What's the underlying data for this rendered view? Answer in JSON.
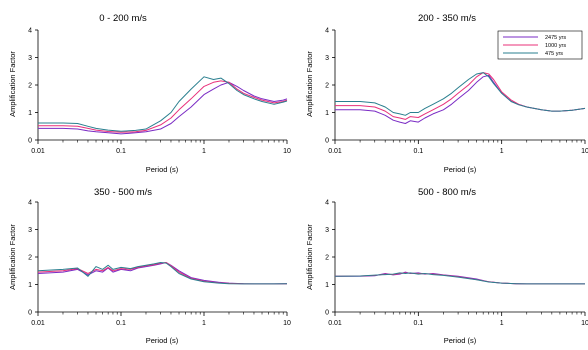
{
  "colors": {
    "axis": "#000000",
    "legend_border": "#000000"
  },
  "chart_data": [
    {
      "type": "line",
      "title": "0 - 200 m/s",
      "xlabel": "Period (s)",
      "ylabel": "Amplification Factor",
      "xscale": "log",
      "xlim": [
        0.01,
        10
      ],
      "ylim": [
        0,
        4
      ],
      "xticks": [
        "0.01",
        "0.1",
        "1",
        "10"
      ],
      "yticks": [
        "0",
        "1",
        "2",
        "3",
        "4"
      ],
      "grid": false,
      "legend": false,
      "series": [
        {
          "name": "2475 yrs",
          "color": "#7a2bc4",
          "x": [
            0.01,
            0.02,
            0.03,
            0.04,
            0.05,
            0.07,
            0.1,
            0.15,
            0.2,
            0.3,
            0.4,
            0.5,
            0.7,
            1.0,
            1.3,
            1.6,
            2.0,
            2.5,
            3.0,
            4.0,
            5.0,
            7.0,
            9.0,
            10.0
          ],
          "y": [
            0.42,
            0.42,
            0.4,
            0.33,
            0.3,
            0.26,
            0.22,
            0.26,
            0.3,
            0.4,
            0.6,
            0.85,
            1.2,
            1.65,
            1.85,
            2.0,
            2.1,
            1.95,
            1.8,
            1.6,
            1.5,
            1.4,
            1.45,
            1.5
          ]
        },
        {
          "name": "1000 yrs",
          "color": "#e8307a",
          "x": [
            0.01,
            0.02,
            0.03,
            0.04,
            0.05,
            0.07,
            0.1,
            0.15,
            0.2,
            0.3,
            0.4,
            0.5,
            0.7,
            1.0,
            1.3,
            1.6,
            2.0,
            2.5,
            3.0,
            4.0,
            5.0,
            7.0,
            9.0,
            10.0
          ],
          "y": [
            0.52,
            0.52,
            0.5,
            0.42,
            0.36,
            0.31,
            0.28,
            0.3,
            0.35,
            0.55,
            0.8,
            1.1,
            1.5,
            1.95,
            2.1,
            2.15,
            2.1,
            1.85,
            1.7,
            1.55,
            1.45,
            1.35,
            1.4,
            1.45
          ]
        },
        {
          "name": "475 yrs",
          "color": "#2a7f8f",
          "x": [
            0.01,
            0.02,
            0.03,
            0.04,
            0.05,
            0.07,
            0.1,
            0.15,
            0.2,
            0.3,
            0.4,
            0.5,
            0.7,
            1.0,
            1.3,
            1.6,
            2.0,
            2.5,
            3.0,
            4.0,
            5.0,
            7.0,
            9.0,
            10.0
          ],
          "y": [
            0.62,
            0.62,
            0.6,
            0.5,
            0.42,
            0.36,
            0.32,
            0.35,
            0.4,
            0.7,
            1.0,
            1.4,
            1.85,
            2.3,
            2.2,
            2.25,
            2.05,
            1.8,
            1.65,
            1.5,
            1.4,
            1.3,
            1.38,
            1.42
          ]
        }
      ]
    },
    {
      "type": "line",
      "title": "200 - 350 m/s",
      "xlabel": "Period (s)",
      "ylabel": "Amplification Factor",
      "xscale": "log",
      "xlim": [
        0.01,
        10
      ],
      "ylim": [
        0,
        4
      ],
      "xticks": [
        "0.01",
        "0.1",
        "1",
        "10"
      ],
      "yticks": [
        "0",
        "1",
        "2",
        "3",
        "4"
      ],
      "grid": false,
      "legend": true,
      "legend_position": "top-right",
      "series": [
        {
          "name": "2475 yrs",
          "color": "#7a2bc4",
          "x": [
            0.01,
            0.02,
            0.03,
            0.04,
            0.05,
            0.06,
            0.07,
            0.08,
            0.1,
            0.12,
            0.15,
            0.2,
            0.25,
            0.3,
            0.4,
            0.5,
            0.6,
            0.7,
            0.8,
            1.0,
            1.3,
            1.6,
            2.0,
            3.0,
            4.0,
            5.0,
            7.0,
            10.0
          ],
          "y": [
            1.1,
            1.1,
            1.05,
            0.9,
            0.72,
            0.65,
            0.6,
            0.7,
            0.65,
            0.8,
            0.95,
            1.1,
            1.3,
            1.5,
            1.8,
            2.1,
            2.3,
            2.35,
            2.1,
            1.7,
            1.4,
            1.3,
            1.2,
            1.1,
            1.05,
            1.05,
            1.08,
            1.15
          ]
        },
        {
          "name": "1000 yrs",
          "color": "#e8307a",
          "x": [
            0.01,
            0.02,
            0.03,
            0.04,
            0.05,
            0.06,
            0.07,
            0.08,
            0.1,
            0.12,
            0.15,
            0.2,
            0.25,
            0.3,
            0.4,
            0.5,
            0.6,
            0.7,
            0.8,
            1.0,
            1.3,
            1.6,
            2.0,
            3.0,
            4.0,
            5.0,
            7.0,
            10.0
          ],
          "y": [
            1.25,
            1.25,
            1.2,
            1.05,
            0.85,
            0.8,
            0.75,
            0.85,
            0.82,
            0.95,
            1.1,
            1.3,
            1.5,
            1.7,
            2.0,
            2.3,
            2.45,
            2.4,
            2.2,
            1.75,
            1.45,
            1.3,
            1.2,
            1.1,
            1.05,
            1.05,
            1.08,
            1.15
          ]
        },
        {
          "name": "475 yrs",
          "color": "#2a7f8f",
          "x": [
            0.01,
            0.02,
            0.03,
            0.04,
            0.05,
            0.06,
            0.07,
            0.08,
            0.1,
            0.12,
            0.15,
            0.2,
            0.25,
            0.3,
            0.4,
            0.5,
            0.6,
            0.7,
            0.8,
            1.0,
            1.3,
            1.6,
            2.0,
            3.0,
            4.0,
            5.0,
            7.0,
            10.0
          ],
          "y": [
            1.4,
            1.4,
            1.35,
            1.2,
            1.0,
            0.95,
            0.9,
            1.0,
            1.0,
            1.15,
            1.3,
            1.5,
            1.7,
            1.9,
            2.2,
            2.4,
            2.45,
            2.3,
            2.05,
            1.7,
            1.4,
            1.28,
            1.2,
            1.1,
            1.05,
            1.05,
            1.08,
            1.15
          ]
        }
      ]
    },
    {
      "type": "line",
      "title": "350 - 500 m/s",
      "xlabel": "Period (s)",
      "ylabel": "Amplification Factor",
      "xscale": "log",
      "xlim": [
        0.01,
        10
      ],
      "ylim": [
        0,
        4
      ],
      "xticks": [
        "0.01",
        "0.1",
        "1",
        "10"
      ],
      "yticks": [
        "0",
        "1",
        "2",
        "3",
        "4"
      ],
      "grid": false,
      "legend": false,
      "series": [
        {
          "name": "2475 yrs",
          "color": "#7a2bc4",
          "x": [
            0.01,
            0.02,
            0.03,
            0.04,
            0.05,
            0.06,
            0.07,
            0.08,
            0.1,
            0.13,
            0.16,
            0.2,
            0.25,
            0.3,
            0.35,
            0.4,
            0.5,
            0.7,
            1.0,
            1.5,
            2.0,
            3.0,
            5.0,
            7.0,
            10.0
          ],
          "y": [
            1.4,
            1.45,
            1.55,
            1.35,
            1.5,
            1.45,
            1.6,
            1.45,
            1.55,
            1.5,
            1.6,
            1.65,
            1.7,
            1.75,
            1.8,
            1.7,
            1.5,
            1.25,
            1.15,
            1.08,
            1.05,
            1.03,
            1.02,
            1.02,
            1.03
          ]
        },
        {
          "name": "1000 yrs",
          "color": "#e8307a",
          "x": [
            0.01,
            0.02,
            0.03,
            0.04,
            0.05,
            0.06,
            0.07,
            0.08,
            0.1,
            0.13,
            0.16,
            0.2,
            0.25,
            0.3,
            0.35,
            0.4,
            0.5,
            0.7,
            1.0,
            1.5,
            2.0,
            3.0,
            5.0,
            7.0,
            10.0
          ],
          "y": [
            1.45,
            1.5,
            1.58,
            1.4,
            1.55,
            1.5,
            1.62,
            1.5,
            1.58,
            1.55,
            1.62,
            1.68,
            1.72,
            1.78,
            1.8,
            1.68,
            1.45,
            1.22,
            1.12,
            1.06,
            1.04,
            1.03,
            1.02,
            1.02,
            1.03
          ]
        },
        {
          "name": "475 yrs",
          "color": "#2a7f8f",
          "x": [
            0.01,
            0.02,
            0.03,
            0.04,
            0.05,
            0.06,
            0.07,
            0.08,
            0.1,
            0.13,
            0.16,
            0.2,
            0.25,
            0.3,
            0.35,
            0.4,
            0.5,
            0.7,
            1.0,
            1.5,
            2.0,
            3.0,
            5.0,
            7.0,
            10.0
          ],
          "y": [
            1.5,
            1.55,
            1.6,
            1.3,
            1.65,
            1.55,
            1.7,
            1.55,
            1.62,
            1.58,
            1.65,
            1.7,
            1.75,
            1.8,
            1.78,
            1.65,
            1.4,
            1.2,
            1.1,
            1.05,
            1.03,
            1.02,
            1.02,
            1.02,
            1.03
          ]
        }
      ]
    },
    {
      "type": "line",
      "title": "500 - 800 m/s",
      "xlabel": "Period (s)",
      "ylabel": "Amplification Factor",
      "xscale": "log",
      "xlim": [
        0.01,
        10
      ],
      "ylim": [
        0,
        4
      ],
      "xticks": [
        "0.01",
        "0.1",
        "1",
        "10"
      ],
      "yticks": [
        "0",
        "1",
        "2",
        "3",
        "4"
      ],
      "grid": false,
      "legend": false,
      "series": [
        {
          "name": "2475 yrs",
          "color": "#7a2bc4",
          "x": [
            0.01,
            0.02,
            0.03,
            0.04,
            0.05,
            0.06,
            0.07,
            0.08,
            0.1,
            0.12,
            0.15,
            0.2,
            0.3,
            0.5,
            0.7,
            1.0,
            1.5,
            2.0,
            3.0,
            5.0,
            7.0,
            10.0
          ],
          "y": [
            1.3,
            1.3,
            1.32,
            1.4,
            1.35,
            1.38,
            1.45,
            1.4,
            1.42,
            1.38,
            1.4,
            1.35,
            1.3,
            1.2,
            1.1,
            1.05,
            1.03,
            1.02,
            1.02,
            1.02,
            1.02,
            1.02
          ]
        },
        {
          "name": "1000 yrs",
          "color": "#e8307a",
          "x": [
            0.01,
            0.02,
            0.03,
            0.04,
            0.05,
            0.06,
            0.07,
            0.08,
            0.1,
            0.12,
            0.15,
            0.2,
            0.3,
            0.5,
            0.7,
            1.0,
            1.5,
            2.0,
            3.0,
            5.0,
            7.0,
            10.0
          ],
          "y": [
            1.3,
            1.31,
            1.33,
            1.38,
            1.36,
            1.4,
            1.42,
            1.41,
            1.4,
            1.39,
            1.38,
            1.34,
            1.28,
            1.18,
            1.1,
            1.05,
            1.03,
            1.02,
            1.02,
            1.02,
            1.02,
            1.02
          ]
        },
        {
          "name": "475 yrs",
          "color": "#2a7f8f",
          "x": [
            0.01,
            0.02,
            0.03,
            0.04,
            0.05,
            0.06,
            0.07,
            0.08,
            0.1,
            0.12,
            0.15,
            0.2,
            0.3,
            0.5,
            0.7,
            1.0,
            1.5,
            2.0,
            3.0,
            5.0,
            7.0,
            10.0
          ],
          "y": [
            1.3,
            1.31,
            1.34,
            1.36,
            1.38,
            1.42,
            1.4,
            1.42,
            1.38,
            1.4,
            1.36,
            1.33,
            1.27,
            1.17,
            1.09,
            1.05,
            1.03,
            1.02,
            1.02,
            1.02,
            1.02,
            1.02
          ]
        }
      ]
    }
  ]
}
